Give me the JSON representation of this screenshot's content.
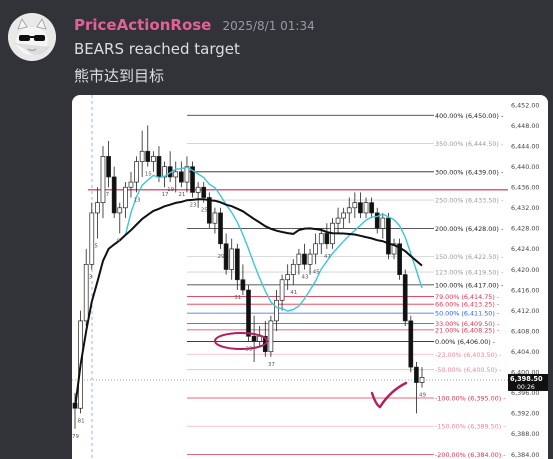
{
  "message": {
    "username": "PriceActionRose",
    "timestamp": "2025/8/1 01:34",
    "text_line1": "BEARS reached target",
    "text_line2": "熊市达到目标"
  },
  "colors": {
    "username": "#e3609a",
    "background": "#313338",
    "ma_cyan": "#3ec6d6",
    "ma_black": "#111111",
    "support_red": "#d6245a",
    "blue_level": "#2962ff",
    "annotation": "#b0205f"
  },
  "chart_data": {
    "type": "candlestick",
    "y_ticks": [
      "6,452.00",
      "6,448.00",
      "6,444.00",
      "6,440.00",
      "6,436.00",
      "6,432.00",
      "6,428.00",
      "6,424.00",
      "6,420.00",
      "6,416.00",
      "6,412.00",
      "6,408.00",
      "6,404.00",
      "6,400.00",
      "6,396.00",
      "6,392.00",
      "6,388.00",
      "6,384.00"
    ],
    "ylim": [
      6383,
      6453
    ],
    "current_price": "6,398.50",
    "countdown": "00:26",
    "fib_levels": [
      {
        "label": "400.00% (6,450.00)",
        "value": 6450.0,
        "style": "black"
      },
      {
        "label": "350.00% (6,444.50)",
        "value": 6444.5,
        "style": "light"
      },
      {
        "label": "300.00% (6,439.00)",
        "value": 6439.0,
        "style": "black"
      },
      {
        "label": "250.00% (6,433.50)",
        "value": 6433.5,
        "style": "light"
      },
      {
        "label": "200.00% (6,428.00)",
        "value": 6428.0,
        "style": "black"
      },
      {
        "label": "150.00% (6,422.50)",
        "value": 6422.5,
        "style": "light"
      },
      {
        "label": "123.00% (6,419.50)",
        "value": 6419.5,
        "style": "light"
      },
      {
        "label": "100.00% (6,417.00)",
        "value": 6417.0,
        "style": "black"
      },
      {
        "label": "79.00% (6,414.75)",
        "value": 6414.75,
        "style": "red"
      },
      {
        "label": "66.00% (6,413.25)",
        "value": 6413.25,
        "style": "red"
      },
      {
        "label": "50.00% (6,411.50)",
        "value": 6411.5,
        "style": "blue"
      },
      {
        "label": "33.00% (6,409.50)",
        "value": 6409.5,
        "style": "red"
      },
      {
        "label": "21.00% (6,408.25)",
        "value": 6408.25,
        "style": "red"
      },
      {
        "label": "0.00% (6,406.00)",
        "value": 6406.0,
        "style": "black"
      },
      {
        "label": "-23.00% (6,403.50)",
        "value": 6403.5,
        "style": "lightred"
      },
      {
        "label": "-50.00% (6,400.50)",
        "value": 6400.5,
        "style": "lightred"
      },
      {
        "label": "-100.00% (6,395.00)",
        "value": 6395.0,
        "style": "red"
      },
      {
        "label": "-150.00% (6,389.50)",
        "value": 6389.5,
        "style": "lightred"
      },
      {
        "label": "-200.00% (6,384.00)",
        "value": 6384.0,
        "style": "red"
      }
    ],
    "support_line": 6435.5,
    "candles": [
      {
        "o": 6394,
        "h": 6396,
        "l": 6389,
        "c": 6393
      },
      {
        "o": 6393,
        "h": 6412,
        "l": 6392,
        "c": 6410
      },
      {
        "o": 6410,
        "h": 6424,
        "l": 6409,
        "c": 6421
      },
      {
        "o": 6421,
        "h": 6433,
        "l": 6420,
        "c": 6431
      },
      {
        "o": 6431,
        "h": 6436,
        "l": 6426,
        "c": 6433
      },
      {
        "o": 6433,
        "h": 6444,
        "l": 6430,
        "c": 6442
      },
      {
        "o": 6442,
        "h": 6445,
        "l": 6436,
        "c": 6438
      },
      {
        "o": 6438,
        "h": 6440,
        "l": 6430,
        "c": 6431
      },
      {
        "o": 6431,
        "h": 6433,
        "l": 6427,
        "c": 6432
      },
      {
        "o": 6432,
        "h": 6437,
        "l": 6430,
        "c": 6436
      },
      {
        "o": 6436,
        "h": 6439,
        "l": 6434,
        "c": 6437
      },
      {
        "o": 6437,
        "h": 6442,
        "l": 6435,
        "c": 6441
      },
      {
        "o": 6441,
        "h": 6447,
        "l": 6438,
        "c": 6443
      },
      {
        "o": 6443,
        "h": 6448,
        "l": 6440,
        "c": 6441
      },
      {
        "o": 6441,
        "h": 6443,
        "l": 6439,
        "c": 6442
      },
      {
        "o": 6442,
        "h": 6444,
        "l": 6437,
        "c": 6438
      },
      {
        "o": 6438,
        "h": 6441,
        "l": 6436,
        "c": 6440
      },
      {
        "o": 6440,
        "h": 6443,
        "l": 6437,
        "c": 6438
      },
      {
        "o": 6438,
        "h": 6441,
        "l": 6435,
        "c": 6439
      },
      {
        "o": 6439,
        "h": 6441,
        "l": 6436,
        "c": 6437
      },
      {
        "o": 6437,
        "h": 6442,
        "l": 6435,
        "c": 6440
      },
      {
        "o": 6440,
        "h": 6441,
        "l": 6434,
        "c": 6435
      },
      {
        "o": 6435,
        "h": 6437,
        "l": 6432,
        "c": 6436
      },
      {
        "o": 6436,
        "h": 6437,
        "l": 6433,
        "c": 6434
      },
      {
        "o": 6434,
        "h": 6435,
        "l": 6428,
        "c": 6429
      },
      {
        "o": 6429,
        "h": 6432,
        "l": 6427,
        "c": 6431
      },
      {
        "o": 6431,
        "h": 6432,
        "l": 6424,
        "c": 6425
      },
      {
        "o": 6425,
        "h": 6427,
        "l": 6419,
        "c": 6420
      },
      {
        "o": 6420,
        "h": 6426,
        "l": 6418,
        "c": 6424
      },
      {
        "o": 6424,
        "h": 6425,
        "l": 6416,
        "c": 6418
      },
      {
        "o": 6418,
        "h": 6421,
        "l": 6415,
        "c": 6416
      },
      {
        "o": 6416,
        "h": 6417,
        "l": 6406,
        "c": 6407
      },
      {
        "o": 6407,
        "h": 6411,
        "l": 6402,
        "c": 6406
      },
      {
        "o": 6406,
        "h": 6409,
        "l": 6405,
        "c": 6407
      },
      {
        "o": 6407,
        "h": 6410,
        "l": 6403,
        "c": 6404
      },
      {
        "o": 6404,
        "h": 6411,
        "l": 6403,
        "c": 6410
      },
      {
        "o": 6410,
        "h": 6416,
        "l": 6408,
        "c": 6414
      },
      {
        "o": 6414,
        "h": 6419,
        "l": 6412,
        "c": 6418
      },
      {
        "o": 6418,
        "h": 6421,
        "l": 6416,
        "c": 6419
      },
      {
        "o": 6419,
        "h": 6422,
        "l": 6417,
        "c": 6421
      },
      {
        "o": 6421,
        "h": 6424,
        "l": 6419,
        "c": 6423
      },
      {
        "o": 6423,
        "h": 6425,
        "l": 6420,
        "c": 6421
      },
      {
        "o": 6421,
        "h": 6424,
        "l": 6419,
        "c": 6423
      },
      {
        "o": 6423,
        "h": 6427,
        "l": 6421,
        "c": 6425
      },
      {
        "o": 6425,
        "h": 6428,
        "l": 6423,
        "c": 6427
      },
      {
        "o": 6427,
        "h": 6429,
        "l": 6424,
        "c": 6425
      },
      {
        "o": 6425,
        "h": 6430,
        "l": 6424,
        "c": 6429
      },
      {
        "o": 6429,
        "h": 6432,
        "l": 6427,
        "c": 6430
      },
      {
        "o": 6430,
        "h": 6432,
        "l": 6428,
        "c": 6431
      },
      {
        "o": 6431,
        "h": 6434,
        "l": 6429,
        "c": 6432
      },
      {
        "o": 6432,
        "h": 6435,
        "l": 6430,
        "c": 6433
      },
      {
        "o": 6433,
        "h": 6435,
        "l": 6430,
        "c": 6431
      },
      {
        "o": 6431,
        "h": 6434,
        "l": 6430,
        "c": 6433
      },
      {
        "o": 6433,
        "h": 6434,
        "l": 6430,
        "c": 6431
      },
      {
        "o": 6431,
        "h": 6432,
        "l": 6427,
        "c": 6428
      },
      {
        "o": 6428,
        "h": 6431,
        "l": 6426,
        "c": 6430
      },
      {
        "o": 6430,
        "h": 6431,
        "l": 6422,
        "c": 6423
      },
      {
        "o": 6423,
        "h": 6426,
        "l": 6422,
        "c": 6425
      },
      {
        "o": 6425,
        "h": 6426,
        "l": 6418,
        "c": 6419
      },
      {
        "o": 6419,
        "h": 6420,
        "l": 6409,
        "c": 6410
      },
      {
        "o": 6410,
        "h": 6411,
        "l": 6400,
        "c": 6401
      },
      {
        "o": 6401,
        "h": 6402,
        "l": 6392,
        "c": 6398
      },
      {
        "o": 6398,
        "h": 6401,
        "l": 6397,
        "c": 6399
      }
    ],
    "bar_labels": [
      {
        "i": 0,
        "t": "79"
      },
      {
        "i": 1,
        "t": "81"
      },
      {
        "i": 3,
        "t": "3"
      },
      {
        "i": 4,
        "t": "5"
      },
      {
        "i": 6,
        "t": "7"
      },
      {
        "i": 8,
        "t": "9"
      },
      {
        "i": 11,
        "t": "13"
      },
      {
        "i": 13,
        "t": "15"
      },
      {
        "i": 16,
        "t": "17"
      },
      {
        "i": 17,
        "t": "19"
      },
      {
        "i": 19,
        "t": "21"
      },
      {
        "i": 21,
        "t": "23"
      },
      {
        "i": 23,
        "t": "25"
      },
      {
        "i": 26,
        "t": "29"
      },
      {
        "i": 29,
        "t": "31"
      },
      {
        "i": 31,
        "t": "33"
      },
      {
        "i": 35,
        "t": "37"
      },
      {
        "i": 39,
        "t": "41"
      },
      {
        "i": 41,
        "t": "43"
      },
      {
        "i": 43,
        "t": "45"
      },
      {
        "i": 45,
        "t": "47"
      },
      {
        "i": 62,
        "t": "49"
      }
    ]
  }
}
